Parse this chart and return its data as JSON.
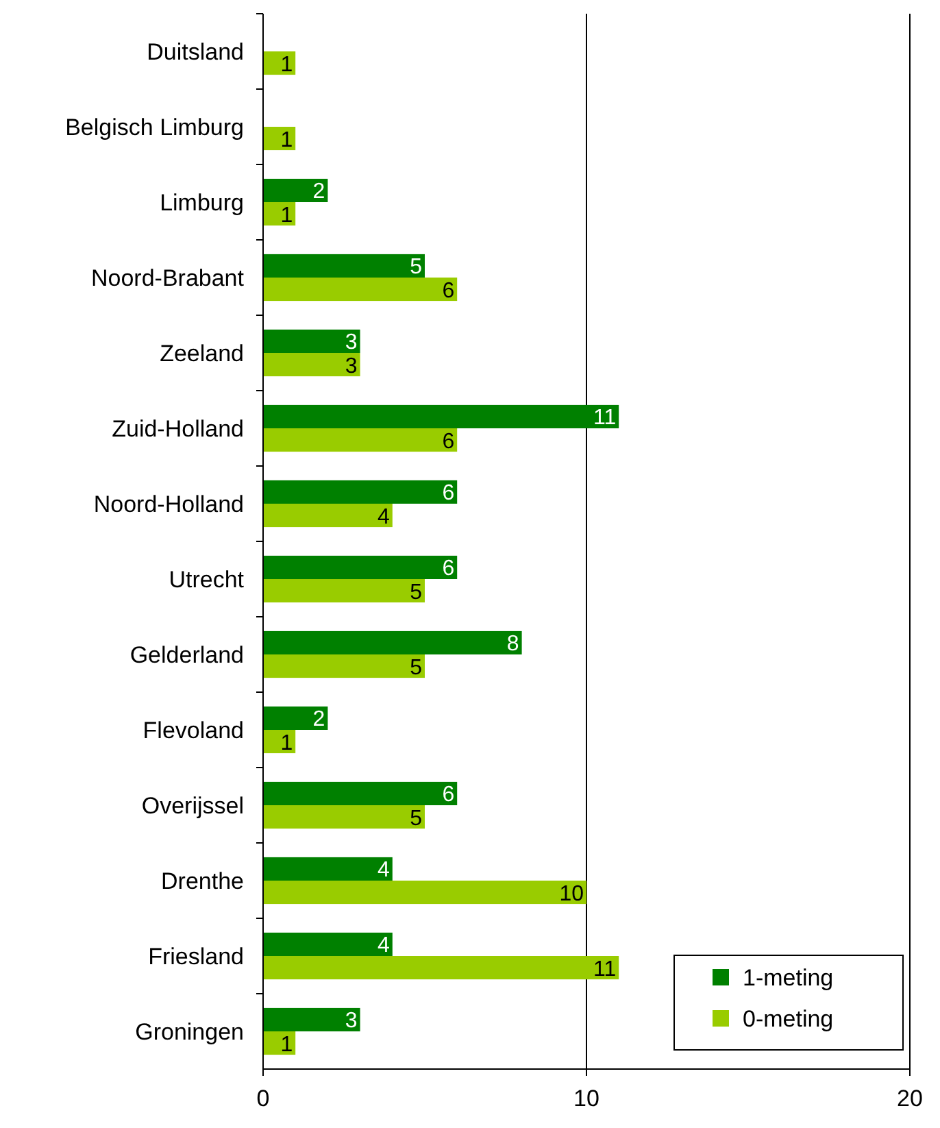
{
  "chart_data": {
    "type": "bar",
    "orientation": "horizontal",
    "categories": [
      "Duitsland",
      "Belgisch Limburg",
      "Limburg",
      "Noord-Brabant",
      "Zeeland",
      "Zuid-Holland",
      "Noord-Holland",
      "Utrecht",
      "Gelderland",
      "Flevoland",
      "Overijssel",
      "Drenthe",
      "Friesland",
      "Groningen"
    ],
    "series": [
      {
        "name": "1-meting",
        "color": "#008000",
        "values": [
          null,
          null,
          2,
          5,
          3,
          11,
          6,
          6,
          8,
          2,
          6,
          4,
          4,
          3
        ]
      },
      {
        "name": "0-meting",
        "color": "#99cc00",
        "values": [
          1,
          1,
          1,
          6,
          3,
          6,
          4,
          5,
          5,
          1,
          5,
          10,
          11,
          1
        ]
      }
    ],
    "xlim": [
      0,
      20
    ],
    "xticks": [
      0,
      10,
      20
    ],
    "grid": "x",
    "legend": "bottom right",
    "data_labels": true
  }
}
